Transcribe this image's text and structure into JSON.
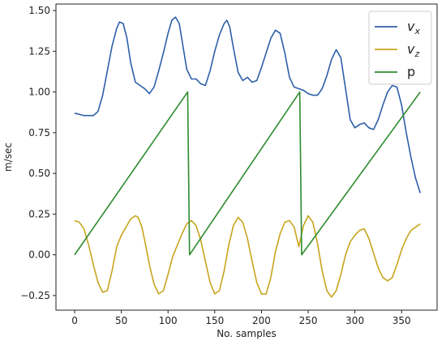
{
  "chart_data": {
    "type": "line",
    "title": "",
    "xlabel": "No. samples",
    "ylabel": "m/sec",
    "xlim": [
      -20,
      388
    ],
    "ylim": [
      -0.34,
      1.54
    ],
    "xticks": [
      0,
      50,
      100,
      150,
      200,
      250,
      300,
      350
    ],
    "yticks": [
      -0.25,
      0.0,
      0.25,
      0.5,
      0.75,
      1.0,
      1.25,
      1.5
    ],
    "xtick_labels": [
      "0",
      "50",
      "100",
      "150",
      "200",
      "250",
      "300",
      "350"
    ],
    "ytick_labels": [
      "−0.25",
      "0.00",
      "0.25",
      "0.50",
      "0.75",
      "1.00",
      "1.25",
      "1.50"
    ],
    "grid": false,
    "legend_position": "top-right",
    "series": [
      {
        "name": "v",
        "subscript": "x",
        "color": "#2d5fa8",
        "x": [
          0,
          10,
          20,
          25,
          30,
          35,
          40,
          45,
          48,
          52,
          56,
          60,
          65,
          70,
          75,
          80,
          85,
          90,
          95,
          100,
          104,
          108,
          112,
          116,
          120,
          125,
          130,
          135,
          140,
          145,
          150,
          155,
          160,
          163,
          166,
          170,
          175,
          180,
          185,
          190,
          195,
          200,
          205,
          210,
          215,
          220,
          225,
          230,
          235,
          240,
          245,
          250,
          255,
          260,
          265,
          270,
          275,
          280,
          285,
          290,
          295,
          300,
          305,
          310,
          315,
          320,
          325,
          330,
          335,
          340,
          345,
          350,
          355,
          360,
          365,
          370
        ],
        "y": [
          0.87,
          0.855,
          0.855,
          0.88,
          0.98,
          1.13,
          1.28,
          1.39,
          1.43,
          1.42,
          1.33,
          1.18,
          1.06,
          1.04,
          1.02,
          0.99,
          1.03,
          1.13,
          1.24,
          1.36,
          1.44,
          1.46,
          1.42,
          1.28,
          1.14,
          1.08,
          1.08,
          1.05,
          1.04,
          1.13,
          1.25,
          1.35,
          1.42,
          1.44,
          1.4,
          1.27,
          1.12,
          1.07,
          1.09,
          1.06,
          1.07,
          1.15,
          1.24,
          1.33,
          1.38,
          1.36,
          1.24,
          1.09,
          1.03,
          1.02,
          1.01,
          0.99,
          0.98,
          0.98,
          1.02,
          1.1,
          1.2,
          1.26,
          1.21,
          1.02,
          0.83,
          0.78,
          0.8,
          0.81,
          0.78,
          0.77,
          0.83,
          0.92,
          1.0,
          1.04,
          1.03,
          0.92,
          0.75,
          0.6,
          0.47,
          0.38
        ]
      },
      {
        "name": "v",
        "subscript": "z",
        "color": "#c8a41e",
        "x": [
          0,
          5,
          10,
          15,
          20,
          25,
          30,
          35,
          40,
          45,
          50,
          55,
          60,
          65,
          68,
          72,
          76,
          80,
          85,
          90,
          95,
          100,
          105,
          110,
          115,
          120,
          125,
          130,
          135,
          140,
          145,
          150,
          155,
          160,
          165,
          170,
          175,
          180,
          185,
          190,
          195,
          200,
          205,
          210,
          215,
          220,
          225,
          230,
          235,
          240,
          245,
          250,
          255,
          260,
          265,
          270,
          275,
          280,
          285,
          290,
          295,
          300,
          305,
          310,
          315,
          320,
          325,
          330,
          335,
          340,
          345,
          350,
          355,
          360,
          365,
          370
        ],
        "y": [
          0.21,
          0.2,
          0.16,
          0.06,
          -0.06,
          -0.17,
          -0.23,
          -0.22,
          -0.1,
          0.05,
          0.12,
          0.17,
          0.22,
          0.24,
          0.23,
          0.17,
          0.06,
          -0.06,
          -0.18,
          -0.24,
          -0.22,
          -0.12,
          -0.01,
          0.06,
          0.13,
          0.19,
          0.21,
          0.18,
          0.09,
          -0.04,
          -0.17,
          -0.24,
          -0.22,
          -0.1,
          0.06,
          0.18,
          0.23,
          0.2,
          0.1,
          -0.04,
          -0.17,
          -0.24,
          -0.24,
          -0.14,
          0.02,
          0.13,
          0.2,
          0.21,
          0.17,
          0.05,
          0.18,
          0.24,
          0.2,
          0.07,
          -0.1,
          -0.22,
          -0.26,
          -0.22,
          -0.12,
          0.0,
          0.08,
          0.12,
          0.15,
          0.16,
          0.1,
          0.01,
          -0.08,
          -0.14,
          -0.16,
          -0.14,
          -0.06,
          0.03,
          0.1,
          0.15,
          0.17,
          0.19
        ]
      },
      {
        "name": "p",
        "subscript": "",
        "color": "#2e8b2e",
        "x": [
          0,
          121,
          123,
          241,
          243,
          370
        ],
        "y": [
          0.0,
          1.0,
          0.0,
          1.0,
          0.0,
          1.0
        ]
      }
    ]
  }
}
